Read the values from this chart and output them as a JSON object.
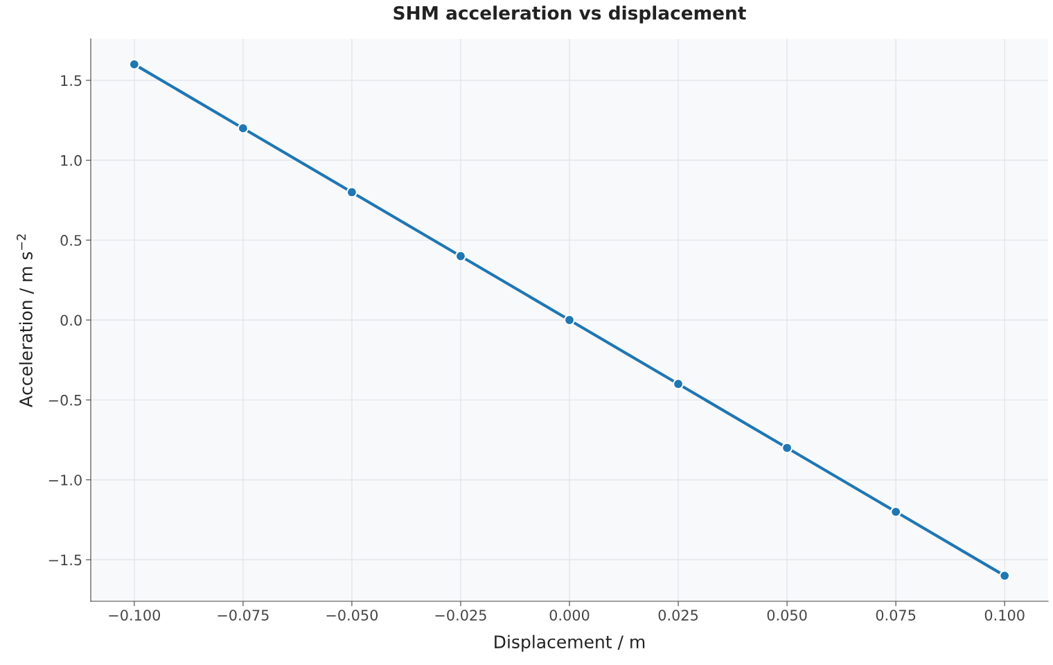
{
  "chart_data": {
    "type": "line",
    "title": "SHM acceleration vs displacement",
    "xlabel": "Displacement / m",
    "ylabel": "Acceleration / m s$^{−2}$",
    "x": [
      -0.1,
      -0.075,
      -0.05,
      -0.025,
      0,
      0.025,
      0.05,
      0.075,
      0.1
    ],
    "series": [
      {
        "color": "#1f77b4",
        "values": [
          1.6,
          1.2,
          0.8,
          0.4,
          0,
          -0.4,
          -0.8,
          -1.2,
          -1.6
        ]
      }
    ],
    "xlim": [
      -0.11,
      0.11
    ],
    "ylim": [
      -1.76,
      1.76
    ],
    "xticks": [
      {
        "value": -0.1,
        "label": "−0.100"
      },
      {
        "value": -0.075,
        "label": "−0.075"
      },
      {
        "value": -0.05,
        "label": "−0.050"
      },
      {
        "value": -0.025,
        "label": "−0.025"
      },
      {
        "value": 0,
        "label": "0.000"
      },
      {
        "value": 0.025,
        "label": "0.025"
      },
      {
        "value": 0.05,
        "label": "0.050"
      },
      {
        "value": 0.075,
        "label": "0.075"
      },
      {
        "value": 0.1,
        "label": "0.100"
      }
    ],
    "yticks": [
      {
        "value": -1.5,
        "label": "−1.5"
      },
      {
        "value": -1.0,
        "label": "−1.0"
      },
      {
        "value": -0.5,
        "label": "−0.5"
      },
      {
        "value": 0,
        "label": "0.0"
      },
      {
        "value": 0.5,
        "label": "0.5"
      },
      {
        "value": 1.0,
        "label": "1.0"
      },
      {
        "value": 1.5,
        "label": "1.5"
      }
    ],
    "grid": true,
    "marker": "circle",
    "line_style": "solid"
  }
}
